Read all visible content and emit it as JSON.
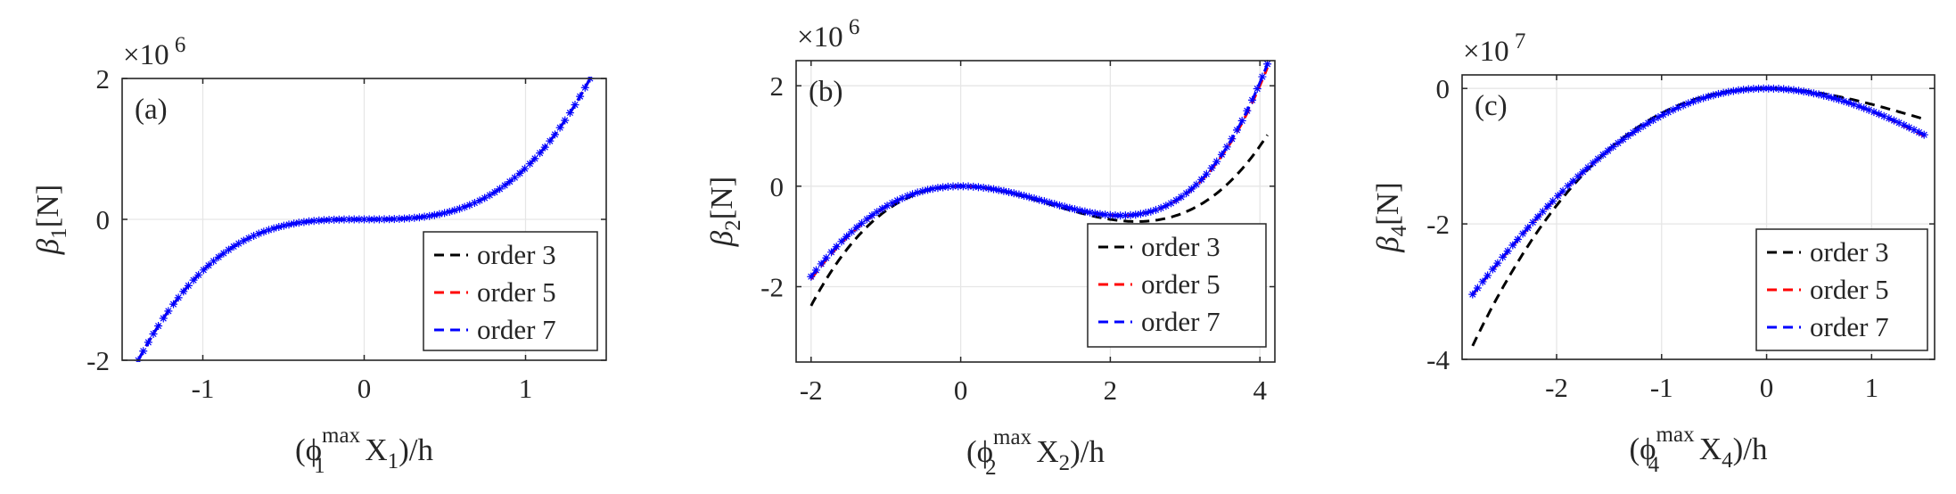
{
  "legend_labels": [
    "order 3",
    "order 5",
    "order 7"
  ],
  "colors": {
    "order 3": "#000000",
    "order 5": "#ff0000",
    "order 7": "#0000ff",
    "axes": "#262626",
    "grid": "#e6e6e6"
  },
  "chart_data": [
    {
      "type": "line",
      "panel_label": "(a)",
      "ylabel": {
        "base": "β",
        "sub": "1",
        "rest": "[N]"
      },
      "xlabel": {
        "pre": "(ϕ",
        "sup": "max",
        "sub": "1",
        "mid": " X",
        "sub2": "1",
        "post": ")/h"
      },
      "exponent": {
        "times": "×10",
        "power": "6"
      },
      "xlim": [
        -1.5,
        1.5
      ],
      "ylim": [
        -2,
        2
      ],
      "xticks": [
        -1,
        0,
        1
      ],
      "xtick_labels": [
        "-1",
        "0",
        "1"
      ],
      "yticks": [
        -2,
        0,
        2
      ],
      "ytick_labels": [
        "-2",
        "0",
        "2"
      ],
      "grid": true,
      "legend_position": "bottom-right",
      "x_range": [
        -1.4,
        1.4
      ],
      "series": [
        {
          "name": "order 3",
          "style": "dashed",
          "coeffs": [
            0,
            0,
            0,
            0.729
          ]
        },
        {
          "name": "order 5",
          "style": "dashed",
          "coeffs": [
            0,
            0,
            0,
            0.729
          ]
        },
        {
          "name": "order 7",
          "style": "dashed+markers",
          "coeffs": [
            0,
            0,
            0,
            0.729
          ]
        }
      ]
    },
    {
      "type": "line",
      "panel_label": "(b)",
      "ylabel": {
        "base": "β",
        "sub": "2",
        "rest": "[N]"
      },
      "xlabel": {
        "pre": "(ϕ",
        "sup": "max",
        "sub": "2",
        "mid": " X",
        "sub2": "2",
        "post": ")/h"
      },
      "exponent": {
        "times": "×10",
        "power": "6"
      },
      "xlim": [
        -2.2,
        4.2
      ],
      "ylim": [
        -3.5,
        2.5
      ],
      "xticks": [
        -2,
        0,
        2,
        4
      ],
      "xtick_labels": [
        "-2",
        "0",
        "2",
        "4"
      ],
      "yticks": [
        -2,
        0,
        2
      ],
      "ytick_labels": [
        "-2",
        "0",
        "2"
      ],
      "grid": true,
      "legend_position": "bottom-right",
      "x_range": [
        -2.0,
        4.1
      ],
      "series": [
        {
          "name": "order 3",
          "style": "dashed",
          "coeffs": [
            0,
            0,
            -0.38,
            0.1075
          ]
        },
        {
          "name": "order 5",
          "style": "dashed",
          "coeffs": [
            0,
            0,
            -0.34,
            0.0795,
            0.0092
          ]
        },
        {
          "name": "order 7",
          "style": "dashed+markers",
          "coeffs": [
            0,
            0,
            -0.337,
            0.0765,
            0.01
          ]
        }
      ]
    },
    {
      "type": "line",
      "panel_label": "(c)",
      "ylabel": {
        "base": "β",
        "sub": "4",
        "rest": "[N]"
      },
      "xlabel": {
        "pre": "(ϕ",
        "sup": "max",
        "sub": "4",
        "mid": " X",
        "sub2": "4",
        "post": ")/h"
      },
      "exponent": {
        "times": "×10",
        "power": "7"
      },
      "xlim": [
        -2.9,
        1.6
      ],
      "ylim": [
        -4,
        0.2
      ],
      "xticks": [
        -2,
        -1,
        0,
        1
      ],
      "xtick_labels": [
        "-2",
        "-1",
        "0",
        "1"
      ],
      "yticks": [
        -4,
        -2,
        0
      ],
      "ytick_labels": [
        "-4",
        "-2",
        "0"
      ],
      "grid": true,
      "legend_position": "bottom-right",
      "x_range": [
        -2.8,
        1.5
      ],
      "series": [
        {
          "name": "order 3",
          "style": "dashed",
          "coeffs": [
            0,
            0,
            -0.3,
            0.066
          ]
        },
        {
          "name": "order 5",
          "style": "dashed",
          "coeffs": [
            0,
            0,
            -0.3815,
            0.0312,
            0.0102
          ]
        },
        {
          "name": "order 7",
          "style": "dashed+markers",
          "coeffs": [
            0,
            0,
            -0.377,
            0.033,
            0.0104
          ]
        }
      ]
    }
  ]
}
